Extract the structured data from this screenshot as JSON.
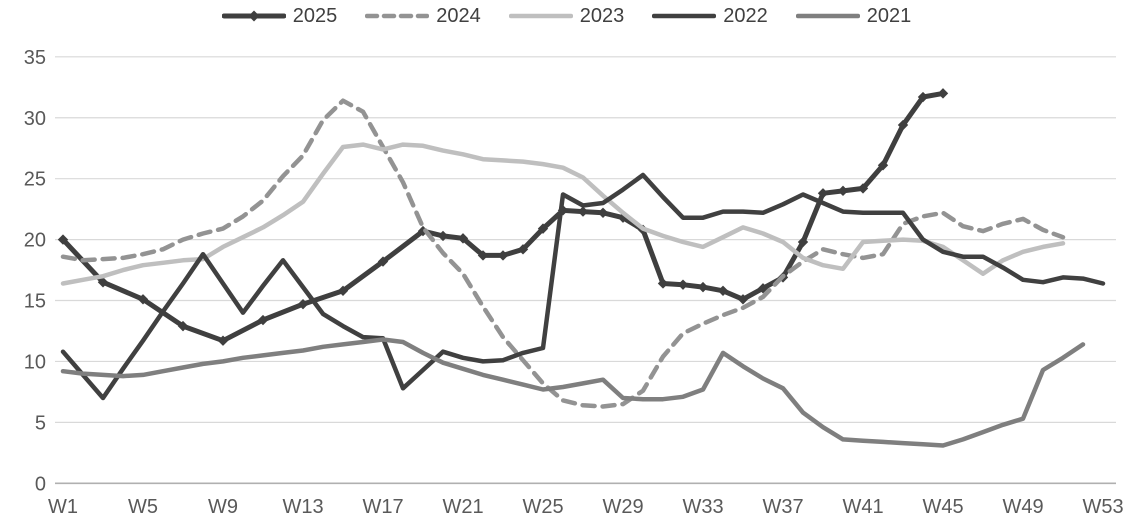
{
  "chart": {
    "background": "#ffffff",
    "tick_text_color": "#595959",
    "legend_text_color": "#404040",
    "gridline_color": "#d9d9d9",
    "axis_line_color": "#b0b0b0"
  },
  "chart_data": {
    "type": "line",
    "title": "",
    "xlabel": "",
    "ylabel": "",
    "x_unit": "week-number",
    "x_tick_labels": [
      "W1",
      "W5",
      "W9",
      "W13",
      "W17",
      "W21",
      "W25",
      "W29",
      "W33",
      "W37",
      "W41",
      "W45",
      "W49",
      "W53"
    ],
    "x_tick_weeks": [
      1,
      5,
      9,
      13,
      17,
      21,
      25,
      29,
      33,
      37,
      41,
      45,
      49,
      53
    ],
    "xlim_weeks": [
      1,
      53
    ],
    "y_ticks": [
      0,
      5,
      10,
      15,
      20,
      25,
      30,
      35
    ],
    "ylim": [
      0,
      35
    ],
    "grid": "horizontal",
    "legend_position": "top",
    "series": [
      {
        "name": "2025",
        "color": "#3f3f3f",
        "style": "solid",
        "marker": "diamond",
        "stroke_width": 5,
        "points": [
          [
            1,
            20.0
          ],
          [
            3,
            16.5
          ],
          [
            5,
            15.1
          ],
          [
            7,
            12.9
          ],
          [
            9,
            11.7
          ],
          [
            11,
            13.4
          ],
          [
            13,
            14.7
          ],
          [
            15,
            15.8
          ],
          [
            17,
            18.2
          ],
          [
            19,
            20.7
          ],
          [
            20,
            20.3
          ],
          [
            21,
            20.1
          ],
          [
            22,
            18.7
          ],
          [
            23,
            18.7
          ],
          [
            24,
            19.2
          ],
          [
            25,
            20.9
          ],
          [
            26,
            22.4
          ],
          [
            27,
            22.3
          ],
          [
            28,
            22.2
          ],
          [
            29,
            21.8
          ],
          [
            30,
            20.8
          ],
          [
            31,
            16.4
          ],
          [
            32,
            16.3
          ],
          [
            33,
            16.1
          ],
          [
            34,
            15.8
          ],
          [
            35,
            15.1
          ],
          [
            36,
            16.0
          ],
          [
            37,
            16.9
          ],
          [
            38,
            19.8
          ],
          [
            39,
            23.8
          ],
          [
            40,
            24.0
          ],
          [
            41,
            24.2
          ],
          [
            42,
            26.1
          ],
          [
            43,
            29.4
          ],
          [
            44,
            31.7
          ],
          [
            45,
            32.0
          ]
        ]
      },
      {
        "name": "2024",
        "color": "#939393",
        "style": "dashed",
        "marker": "none",
        "stroke_width": 4.5,
        "points": [
          [
            1,
            18.6
          ],
          [
            2,
            18.3
          ],
          [
            3,
            18.4
          ],
          [
            4,
            18.5
          ],
          [
            5,
            18.8
          ],
          [
            6,
            19.2
          ],
          [
            7,
            20.0
          ],
          [
            8,
            20.5
          ],
          [
            9,
            20.9
          ],
          [
            10,
            21.9
          ],
          [
            11,
            23.2
          ],
          [
            12,
            25.2
          ],
          [
            13,
            26.9
          ],
          [
            14,
            29.8
          ],
          [
            15,
            31.4
          ],
          [
            16,
            30.5
          ],
          [
            17,
            27.6
          ],
          [
            18,
            24.7
          ],
          [
            19,
            21.0
          ],
          [
            20,
            18.9
          ],
          [
            21,
            17.2
          ],
          [
            22,
            14.5
          ],
          [
            23,
            12.0
          ],
          [
            24,
            10.1
          ],
          [
            25,
            8.2
          ],
          [
            26,
            6.8
          ],
          [
            27,
            6.4
          ],
          [
            28,
            6.3
          ],
          [
            29,
            6.5
          ],
          [
            30,
            7.6
          ],
          [
            31,
            10.4
          ],
          [
            32,
            12.3
          ],
          [
            33,
            13.1
          ],
          [
            34,
            13.8
          ],
          [
            35,
            14.4
          ],
          [
            36,
            15.3
          ],
          [
            37,
            17.0
          ],
          [
            38,
            18.2
          ],
          [
            39,
            19.2
          ],
          [
            40,
            18.8
          ],
          [
            41,
            18.5
          ],
          [
            42,
            18.8
          ],
          [
            43,
            21.3
          ],
          [
            44,
            21.9
          ],
          [
            45,
            22.2
          ],
          [
            46,
            21.1
          ],
          [
            47,
            20.7
          ],
          [
            48,
            21.3
          ],
          [
            49,
            21.7
          ],
          [
            50,
            20.8
          ],
          [
            51,
            20.2
          ]
        ]
      },
      {
        "name": "2023",
        "color": "#bfbfbf",
        "style": "solid",
        "marker": "none",
        "stroke_width": 4.5,
        "points": [
          [
            1,
            16.4
          ],
          [
            2,
            16.7
          ],
          [
            3,
            17.0
          ],
          [
            4,
            17.5
          ],
          [
            5,
            17.9
          ],
          [
            6,
            18.1
          ],
          [
            7,
            18.3
          ],
          [
            8,
            18.4
          ],
          [
            9,
            19.4
          ],
          [
            10,
            20.2
          ],
          [
            11,
            21.0
          ],
          [
            12,
            22.0
          ],
          [
            13,
            23.1
          ],
          [
            14,
            25.4
          ],
          [
            15,
            27.6
          ],
          [
            16,
            27.8
          ],
          [
            17,
            27.4
          ],
          [
            18,
            27.8
          ],
          [
            19,
            27.7
          ],
          [
            20,
            27.3
          ],
          [
            21,
            27.0
          ],
          [
            22,
            26.6
          ],
          [
            23,
            26.5
          ],
          [
            24,
            26.4
          ],
          [
            25,
            26.2
          ],
          [
            26,
            25.9
          ],
          [
            27,
            25.1
          ],
          [
            28,
            23.6
          ],
          [
            29,
            22.2
          ],
          [
            30,
            20.9
          ],
          [
            31,
            20.3
          ],
          [
            32,
            19.8
          ],
          [
            33,
            19.4
          ],
          [
            34,
            20.2
          ],
          [
            35,
            21.0
          ],
          [
            36,
            20.5
          ],
          [
            37,
            19.8
          ],
          [
            38,
            18.5
          ],
          [
            39,
            17.9
          ],
          [
            40,
            17.6
          ],
          [
            41,
            19.8
          ],
          [
            42,
            19.9
          ],
          [
            43,
            20.0
          ],
          [
            44,
            19.9
          ],
          [
            45,
            19.4
          ],
          [
            46,
            18.3
          ],
          [
            47,
            17.2
          ],
          [
            48,
            18.3
          ],
          [
            49,
            19.0
          ],
          [
            50,
            19.4
          ],
          [
            51,
            19.7
          ]
        ]
      },
      {
        "name": "2022",
        "color": "#404040",
        "style": "solid",
        "marker": "none",
        "stroke_width": 4.5,
        "points": [
          [
            1,
            10.8
          ],
          [
            2,
            8.9
          ],
          [
            3,
            7.0
          ],
          [
            4,
            9.4
          ],
          [
            5,
            11.7
          ],
          [
            6,
            14.1
          ],
          [
            7,
            16.4
          ],
          [
            8,
            18.8
          ],
          [
            9,
            16.4
          ],
          [
            10,
            14.0
          ],
          [
            11,
            16.2
          ],
          [
            12,
            18.3
          ],
          [
            13,
            16.1
          ],
          [
            14,
            13.9
          ],
          [
            15,
            12.9
          ],
          [
            16,
            12.0
          ],
          [
            17,
            11.9
          ],
          [
            18,
            7.8
          ],
          [
            19,
            9.3
          ],
          [
            20,
            10.8
          ],
          [
            21,
            10.3
          ],
          [
            22,
            10.0
          ],
          [
            23,
            10.1
          ],
          [
            24,
            10.7
          ],
          [
            25,
            11.1
          ],
          [
            26,
            23.7
          ],
          [
            27,
            22.8
          ],
          [
            28,
            23.0
          ],
          [
            29,
            24.1
          ],
          [
            30,
            25.3
          ],
          [
            31,
            23.5
          ],
          [
            32,
            21.8
          ],
          [
            33,
            21.8
          ],
          [
            34,
            22.3
          ],
          [
            35,
            22.3
          ],
          [
            36,
            22.2
          ],
          [
            37,
            22.9
          ],
          [
            38,
            23.7
          ],
          [
            39,
            23.0
          ],
          [
            40,
            22.3
          ],
          [
            41,
            22.2
          ],
          [
            42,
            22.2
          ],
          [
            43,
            22.2
          ],
          [
            44,
            20.0
          ],
          [
            45,
            19.0
          ],
          [
            46,
            18.6
          ],
          [
            47,
            18.6
          ],
          [
            48,
            17.7
          ],
          [
            49,
            16.7
          ],
          [
            50,
            16.5
          ],
          [
            51,
            16.9
          ],
          [
            52,
            16.8
          ],
          [
            53,
            16.4
          ]
        ]
      },
      {
        "name": "2021",
        "color": "#7f7f7f",
        "style": "solid",
        "marker": "none",
        "stroke_width": 4.5,
        "points": [
          [
            1,
            9.2
          ],
          [
            2,
            9.0
          ],
          [
            3,
            8.9
          ],
          [
            4,
            8.8
          ],
          [
            5,
            8.9
          ],
          [
            6,
            9.2
          ],
          [
            7,
            9.5
          ],
          [
            8,
            9.8
          ],
          [
            9,
            10.0
          ],
          [
            10,
            10.3
          ],
          [
            11,
            10.5
          ],
          [
            12,
            10.7
          ],
          [
            13,
            10.9
          ],
          [
            14,
            11.2
          ],
          [
            15,
            11.4
          ],
          [
            16,
            11.6
          ],
          [
            17,
            11.8
          ],
          [
            18,
            11.6
          ],
          [
            19,
            10.7
          ],
          [
            20,
            9.9
          ],
          [
            21,
            9.4
          ],
          [
            22,
            8.9
          ],
          [
            23,
            8.5
          ],
          [
            24,
            8.1
          ],
          [
            25,
            7.7
          ],
          [
            26,
            7.9
          ],
          [
            27,
            8.2
          ],
          [
            28,
            8.5
          ],
          [
            29,
            7.0
          ],
          [
            30,
            6.9
          ],
          [
            31,
            6.9
          ],
          [
            32,
            7.1
          ],
          [
            33,
            7.7
          ],
          [
            34,
            10.7
          ],
          [
            35,
            9.6
          ],
          [
            36,
            8.6
          ],
          [
            37,
            7.8
          ],
          [
            38,
            5.8
          ],
          [
            39,
            4.6
          ],
          [
            40,
            3.6
          ],
          [
            41,
            3.5
          ],
          [
            42,
            3.4
          ],
          [
            43,
            3.3
          ],
          [
            44,
            3.2
          ],
          [
            45,
            3.1
          ],
          [
            46,
            3.6
          ],
          [
            47,
            4.2
          ],
          [
            48,
            4.8
          ],
          [
            49,
            5.3
          ],
          [
            50,
            9.3
          ],
          [
            51,
            10.3
          ],
          [
            52,
            11.4
          ]
        ]
      }
    ]
  }
}
